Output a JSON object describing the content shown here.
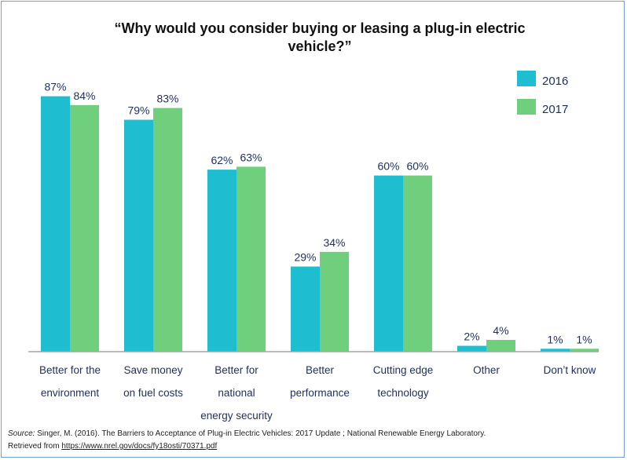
{
  "chart_data": {
    "type": "bar",
    "title": "“Why would you consider buying or leasing a plug-in electric vehicle?”",
    "title_lines": [
      "“Why would you consider buying or leasing a plug-in electric",
      "vehicle?”"
    ],
    "categories": [
      [
        "Better for the",
        "environment"
      ],
      [
        "Save money",
        "on fuel costs"
      ],
      [
        "Better for",
        "national",
        "energy security"
      ],
      [
        "Better",
        "performance"
      ],
      [
        "Cutting edge",
        "technology"
      ],
      [
        "Other"
      ],
      [
        "Don’t know"
      ]
    ],
    "series": [
      {
        "name": "2016",
        "color": "#1fbdd0",
        "values": [
          87,
          79,
          62,
          29,
          60,
          2,
          1
        ]
      },
      {
        "name": "2017",
        "color": "#6fcf7c",
        "values": [
          84,
          83,
          63,
          34,
          60,
          4,
          1
        ]
      }
    ],
    "value_suffix": "%",
    "ylim": [
      0,
      100
    ],
    "grid": false,
    "legend_position": "top-right",
    "axis_color": "#a6a6a6"
  },
  "source": {
    "label": "Source:",
    "text": " Singer, M. (2016). The Barriers to Acceptance of Plug-in Electric Vehicles: 2017 Update ; National Renewable Energy Laboratory.",
    "retrieved": "Retrieved from ",
    "link": "https://www.nrel.gov/docs/fy18osti/70371.pdf"
  }
}
